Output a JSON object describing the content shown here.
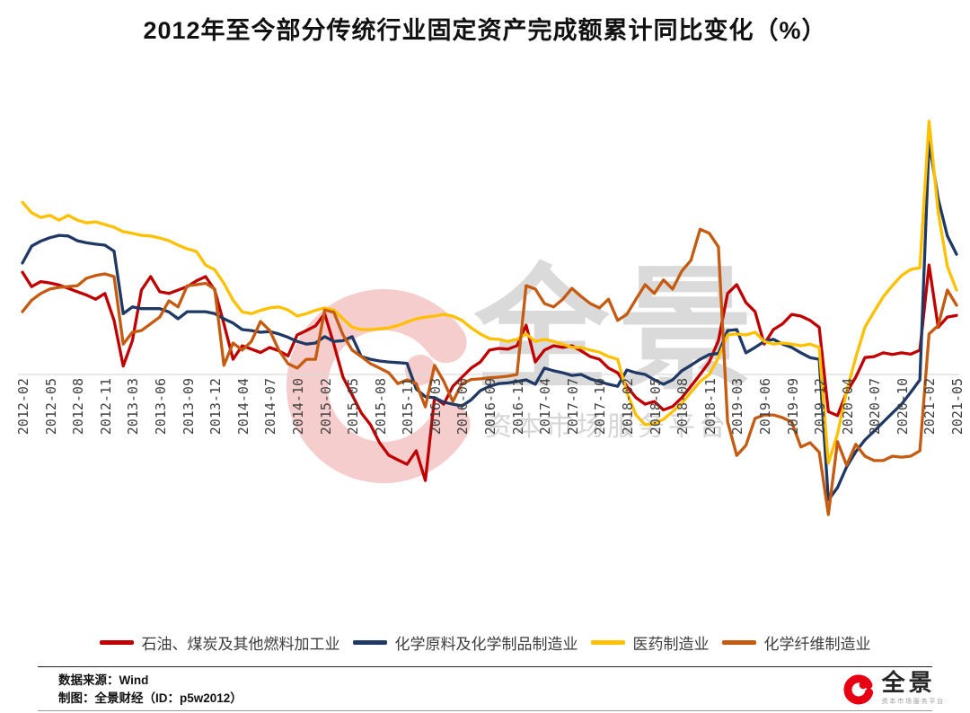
{
  "title": "2012年至今部分传统行业固定资产完成额累计同比变化（%）",
  "watermark": {
    "brand": "全景",
    "tagline": "资本市场服务平台",
    "ring_color": "#f6cdcd",
    "text_color": "#dadada"
  },
  "chart_data": {
    "type": "line",
    "title": "2012年至今部分传统行业固定资产完成额累计同比变化（%）",
    "xlabel": "",
    "ylabel": "",
    "x_start": "2012-02",
    "x_end": "2021-05",
    "x_note": "monthly points, January omitted (cumulative YoY %), 103 points per series",
    "x_ticks": [
      "2012-02",
      "2012-05",
      "2012-08",
      "2012-11",
      "2013-03",
      "2013-06",
      "2013-09",
      "2013-12",
      "2014-04",
      "2014-07",
      "2014-10",
      "2015-02",
      "2015-05",
      "2015-08",
      "2015-11",
      "2016-03",
      "2016-06",
      "2016-09",
      "2016-12",
      "2017-04",
      "2017-07",
      "2017-10",
      "2018-02",
      "2018-05",
      "2018-08",
      "2018-11",
      "2019-03",
      "2019-06",
      "2019-09",
      "2019-12",
      "2020-04",
      "2020-07",
      "2020-10",
      "2021-02",
      "2021-05"
    ],
    "tick_every_n_points": 3,
    "ylim": [
      -45,
      80
    ],
    "grid": "zero baseline only",
    "baseline": 0,
    "baseline_color": "#d9d9d9",
    "legend_position": "bottom",
    "series": [
      {
        "name": "石油、煤炭及其他燃料加工业",
        "color": "#c00000",
        "values": [
          30.3,
          26.0,
          27.5,
          27.1,
          26.5,
          25.5,
          24.5,
          23.5,
          22.3,
          24.0,
          16.0,
          2.5,
          10.0,
          25.0,
          29.0,
          24.5,
          24.0,
          25.0,
          26.0,
          27.7,
          29.0,
          25.0,
          15.0,
          4.5,
          8.5,
          7.5,
          6.5,
          8.0,
          7.0,
          5.5,
          11.7,
          13.0,
          14.4,
          18.0,
          9.0,
          -0.8,
          -6.1,
          -11.4,
          -14.9,
          -20.2,
          -23.9,
          -25.3,
          -26.6,
          -22.6,
          -31.4,
          -6.9,
          -8.8,
          -3.5,
          -0.8,
          1.9,
          3.7,
          7.2,
          7.7,
          7.5,
          8.5,
          14.6,
          3.7,
          7.2,
          8.5,
          8.0,
          8.5,
          7.0,
          5.3,
          4.5,
          1.9,
          0.5,
          -3.5,
          -6.9,
          -8.8,
          -8.0,
          -10.5,
          -9.5,
          -6.9,
          -3.5,
          0.0,
          3.7,
          10.0,
          24.0,
          26.6,
          21.3,
          18.6,
          9.0,
          13.3,
          15.0,
          17.8,
          17.3,
          16.0,
          14.0,
          -11.0,
          -12.2,
          -5.3,
          -0.8,
          5.0,
          5.3,
          6.4,
          5.9,
          6.4,
          6.0,
          7.2,
          32.4,
          14.0,
          17.0,
          17.5
        ]
      },
      {
        "name": "化学原料及化学制品制造业",
        "color": "#1f3864",
        "values": [
          33.0,
          38.0,
          39.5,
          40.5,
          41.2,
          41.0,
          39.6,
          39.0,
          38.6,
          38.3,
          36.5,
          18.0,
          20.0,
          19.5,
          19.5,
          19.5,
          18.5,
          16.5,
          18.6,
          18.6,
          18.6,
          18.0,
          16.5,
          15.2,
          13.3,
          13.0,
          12.5,
          12.7,
          12.0,
          11.0,
          9.8,
          9.0,
          9.3,
          11.2,
          9.8,
          10.0,
          11.2,
          5.3,
          4.5,
          4.0,
          3.7,
          3.5,
          3.3,
          -4.3,
          -6.6,
          -6.9,
          -8.2,
          -8.8,
          -9.3,
          -7.5,
          -4.8,
          -3.5,
          -2.7,
          -2.5,
          -2.1,
          -1.6,
          -2.9,
          1.9,
          1.1,
          0.5,
          -0.3,
          0.0,
          -1.3,
          -2.1,
          -2.9,
          -3.5,
          1.3,
          0.5,
          0.0,
          -1.6,
          -2.9,
          -1.6,
          1.1,
          2.7,
          4.5,
          5.9,
          6.2,
          13.0,
          13.3,
          6.4,
          8.0,
          9.8,
          10.4,
          9.0,
          8.0,
          6.4,
          5.0,
          4.5,
          -37.2,
          -33.5,
          -27.4,
          -22.9,
          -19.4,
          -16.8,
          -14.1,
          -11.4,
          -8.8,
          -5.3,
          -1.6,
          69.0,
          52.0,
          41.0,
          35.6
        ]
      },
      {
        "name": "医药制造业",
        "color": "#ffc000",
        "values": [
          51.0,
          47.9,
          46.5,
          47.1,
          45.7,
          47.1,
          45.7,
          44.9,
          45.2,
          44.4,
          43.6,
          42.3,
          41.8,
          41.2,
          41.0,
          40.4,
          39.6,
          38.3,
          37.2,
          36.4,
          32.4,
          31.0,
          27.0,
          22.0,
          18.5,
          18.0,
          19.0,
          19.7,
          20.0,
          19.1,
          17.3,
          18.0,
          19.0,
          19.7,
          19.1,
          16.5,
          14.0,
          13.3,
          13.3,
          13.5,
          13.8,
          14.5,
          15.5,
          16.5,
          17.0,
          17.3,
          17.8,
          17.3,
          16.0,
          13.8,
          12.0,
          10.6,
          10.4,
          9.8,
          10.4,
          12.0,
          9.8,
          10.4,
          9.8,
          9.0,
          8.0,
          8.0,
          7.2,
          6.6,
          5.3,
          4.5,
          -5.3,
          -12.0,
          -14.9,
          -14.6,
          -13.3,
          -11.0,
          -8.5,
          -5.3,
          -2.1,
          0.0,
          5.0,
          11.7,
          12.0,
          11.7,
          12.5,
          9.8,
          9.0,
          9.3,
          9.0,
          8.5,
          9.0,
          8.0,
          -26.3,
          -17.6,
          -5.0,
          5.0,
          14.0,
          18.6,
          23.0,
          26.3,
          29.3,
          31.1,
          31.6,
          75.0,
          48.0,
          32.0,
          25.0
        ]
      },
      {
        "name": "化学纤维制造业",
        "color": "#c55a11",
        "values": [
          18.6,
          22.0,
          24.0,
          25.3,
          25.8,
          26.0,
          26.3,
          28.5,
          29.3,
          29.8,
          29.0,
          9.0,
          12.5,
          13.0,
          15.0,
          17.0,
          21.8,
          20.0,
          26.3,
          26.6,
          27.0,
          25.3,
          2.7,
          9.3,
          7.2,
          9.8,
          15.7,
          13.0,
          7.2,
          3.2,
          1.9,
          4.5,
          4.5,
          19.1,
          18.4,
          11.7,
          7.2,
          5.3,
          3.2,
          1.9,
          0.5,
          -2.7,
          -1.6,
          -2.7,
          -9.6,
          2.7,
          -2.0,
          -8.0,
          -2.7,
          -1.5,
          -1.3,
          -1.0,
          -0.8,
          -0.5,
          0.0,
          26.3,
          25.3,
          21.0,
          20.0,
          22.3,
          25.5,
          23.1,
          21.0,
          19.7,
          22.3,
          16.0,
          17.8,
          22.3,
          26.6,
          24.0,
          28.0,
          25.3,
          30.6,
          33.8,
          43.0,
          41.8,
          37.8,
          -14.0,
          -24.0,
          -21.0,
          -13.0,
          -12.0,
          -12.0,
          -12.8,
          -14.1,
          -21.5,
          -20.2,
          -23.0,
          -41.5,
          -19.9,
          -26.9,
          -20.7,
          -24.2,
          -25.5,
          -25.5,
          -24.2,
          -24.5,
          -24.2,
          -22.6,
          12.0,
          14.5,
          25.0,
          20.5
        ]
      }
    ]
  },
  "footer": {
    "source_label": "数据来源：Wind",
    "credit_label": "制图：全景财经（ID：p5w2012）",
    "logo_name": "全景",
    "logo_tagline": "资本市场服务平台",
    "logo_color": "#e60012"
  }
}
